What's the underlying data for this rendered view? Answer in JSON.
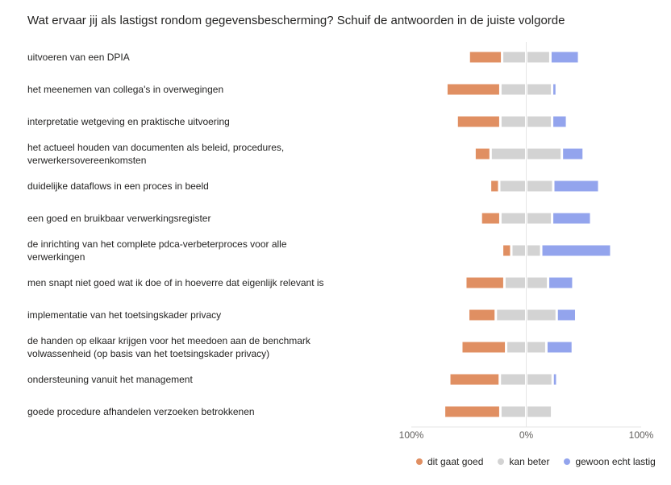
{
  "chart_data": {
    "type": "bar",
    "subtype": "diverging-stacked-horizontal",
    "title": "Wat ervaar jij als lastigst rondom gegevensbescherming? Schuif de antwoorden in de juiste volgorde",
    "xlabel": "",
    "ylabel": "",
    "xlim": [
      -100,
      100
    ],
    "x_tick_labels": [
      "100%",
      "0%",
      "100%"
    ],
    "grid": false,
    "legend_position": "bottom-right",
    "categories": [
      "uitvoeren van een DPIA",
      "het meenemen van collega's in overwegingen",
      "interpretatie wetgeving en praktische uitvoering",
      "het actueel houden van documenten als beleid, procedures, verwerkersovereenkomsten",
      "duidelijke dataflows in een proces in beeld",
      "een goed en bruikbaar verwerkingsregister",
      "de inrichting van het complete pdca-verbeterproces voor alle verwerkingen",
      "men snapt niet goed wat ik doe of in hoeverre dat eigenlijk relevant is",
      "implementatie van het toetsingskader privacy",
      "de handen op elkaar krijgen voor het meedoen aan de benchmark volwassenheid (op basis van het toetsingskader privacy)",
      "ondersteuning vanuit het management",
      "goede procedure afhandelen verzoeken betrokkenen"
    ],
    "series": [
      {
        "name": "dit gaat goed",
        "color": "#E08F62",
        "values": [
          29,
          47,
          38,
          14,
          8,
          17,
          8,
          34,
          24,
          39,
          44,
          49
        ]
      },
      {
        "name": "kan beter",
        "color": "#D3D3D3",
        "values": [
          42,
          45,
          45,
          62,
          47,
          45,
          26,
          38,
          53,
          35,
          46,
          45
        ]
      },
      {
        "name": "gewoon echt lastig",
        "color": "#93A4ED",
        "values": [
          25,
          4,
          13,
          19,
          40,
          34,
          61,
          22,
          17,
          23,
          4,
          1
        ]
      }
    ]
  },
  "legend": {
    "items": [
      {
        "label": "dit gaat goed",
        "color": "#E08F62"
      },
      {
        "label": "kan beter",
        "color": "#D3D3D3"
      },
      {
        "label": "gewoon echt lastig",
        "color": "#93A4ED"
      }
    ]
  }
}
